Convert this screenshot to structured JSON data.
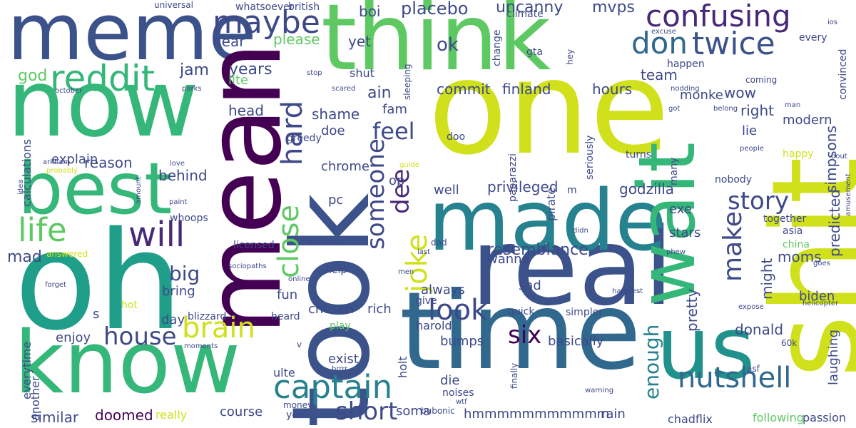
{
  "wordcloud": {
    "words": [
      {
        "text": "think",
        "color": "#5ec962"
      },
      {
        "text": "one",
        "color": "#d0e11c"
      },
      {
        "text": "meme",
        "color": "#3b528b"
      },
      {
        "text": "now",
        "color": "#35b779"
      },
      {
        "text": "oh",
        "color": "#1f9e89"
      },
      {
        "text": "know",
        "color": "#35b779"
      },
      {
        "text": "took",
        "color": "#3b528b"
      },
      {
        "text": "mean",
        "color": "#440154"
      },
      {
        "text": "real",
        "color": "#3b528b"
      },
      {
        "text": "time",
        "color": "#31688e"
      },
      {
        "text": "made",
        "color": "#26828e"
      },
      {
        "text": "wait",
        "color": "#35b779"
      },
      {
        "text": "shit",
        "color": "#d0e11c"
      },
      {
        "text": "us",
        "color": "#21918c"
      },
      {
        "text": "best",
        "color": "#35b779"
      },
      {
        "text": "confusing",
        "color": "#482878"
      },
      {
        "text": "maybe",
        "color": "#3e4989"
      },
      {
        "text": "reddit",
        "color": "#35b779"
      },
      {
        "text": "don",
        "color": "#31688e"
      },
      {
        "text": "twice",
        "color": "#3b528b"
      },
      {
        "text": "life",
        "color": "#5ec962"
      },
      {
        "text": "will",
        "color": "#482878"
      },
      {
        "text": "brain",
        "color": "#d0e11c"
      },
      {
        "text": "captain",
        "color": "#26828e"
      },
      {
        "text": "nutshell",
        "color": "#31688e"
      },
      {
        "text": "look",
        "color": "#3e4989"
      },
      {
        "text": "make",
        "color": "#3e4989"
      },
      {
        "text": "hard",
        "color": "#3e4989"
      },
      {
        "text": "close",
        "color": "#5ec962"
      },
      {
        "text": "someone",
        "color": "#3e4989"
      },
      {
        "text": "joke",
        "color": "#d0e11c"
      },
      {
        "text": "dee",
        "color": "#482878"
      },
      {
        "text": "story",
        "color": "#3e4989"
      },
      {
        "text": "house",
        "color": "#3e4989"
      },
      {
        "text": "short",
        "color": "#3e4989"
      },
      {
        "text": "six",
        "color": "#440154"
      },
      {
        "text": "ok",
        "color": "#3e4989"
      },
      {
        "text": "feel",
        "color": "#3e4989"
      },
      {
        "text": "enough",
        "color": "#26828e"
      },
      {
        "text": "mad",
        "color": "#3e4989"
      },
      {
        "text": "big",
        "color": "#3e4989"
      },
      {
        "text": "jam",
        "color": "#3e4989"
      },
      {
        "text": "god",
        "color": "#5ec962"
      },
      {
        "text": "years",
        "color": "#3e4989"
      },
      {
        "text": "head",
        "color": "#3e4989"
      },
      {
        "text": "placebo",
        "color": "#3e4989"
      },
      {
        "text": "uncanny",
        "color": "#3e4989"
      },
      {
        "text": "mvps",
        "color": "#3e4989"
      },
      {
        "text": "boi",
        "color": "#3e4989"
      },
      {
        "text": "please",
        "color": "#5ec962"
      },
      {
        "text": "yet",
        "color": "#3e4989"
      },
      {
        "text": "hear",
        "color": "#3e4989"
      },
      {
        "text": "commit",
        "color": "#3e4989"
      },
      {
        "text": "finland",
        "color": "#3e4989"
      },
      {
        "text": "hours",
        "color": "#3e4989"
      },
      {
        "text": "ain",
        "color": "#3e4989"
      },
      {
        "text": "shame",
        "color": "#3e4989"
      },
      {
        "text": "doe",
        "color": "#3e4989"
      },
      {
        "text": "fam",
        "color": "#3e4989"
      },
      {
        "text": "team",
        "color": "#3e4989"
      },
      {
        "text": "monke",
        "color": "#3e4989"
      },
      {
        "text": "wow",
        "color": "#3e4989"
      },
      {
        "text": "right",
        "color": "#3e4989"
      },
      {
        "text": "lie",
        "color": "#3e4989"
      },
      {
        "text": "modern",
        "color": "#3e4989"
      },
      {
        "text": "simpsons",
        "color": "#3e4989"
      },
      {
        "text": "predicted",
        "color": "#3e4989"
      },
      {
        "text": "laughing",
        "color": "#3e4989"
      },
      {
        "text": "explain",
        "color": "#3e4989"
      },
      {
        "text": "reason",
        "color": "#3e4989"
      },
      {
        "text": "behind",
        "color": "#3e4989"
      },
      {
        "text": "chrome",
        "color": "#3e4989"
      },
      {
        "text": "op",
        "color": "#3e4989"
      },
      {
        "text": "pc",
        "color": "#3e4989"
      },
      {
        "text": "well",
        "color": "#3e4989"
      },
      {
        "text": "privileged",
        "color": "#3e4989"
      },
      {
        "text": "godzilla",
        "color": "#3e4989"
      },
      {
        "text": "exe",
        "color": "#3e4989"
      },
      {
        "text": "stars",
        "color": "#3e4989"
      },
      {
        "text": "moms",
        "color": "#3e4989"
      },
      {
        "text": "might",
        "color": "#3e4989"
      },
      {
        "text": "pretty",
        "color": "#3e4989"
      },
      {
        "text": "biden",
        "color": "#3e4989"
      },
      {
        "text": "donald",
        "color": "#3e4989"
      },
      {
        "text": "resemblance",
        "color": "#3e4989"
      },
      {
        "text": "wanna",
        "color": "#3e4989"
      },
      {
        "text": "always",
        "color": "#3e4989"
      },
      {
        "text": "sad",
        "color": "#3e4989"
      },
      {
        "text": "fun",
        "color": "#3e4989"
      },
      {
        "text": "chosen",
        "color": "#3e4989"
      },
      {
        "text": "rich",
        "color": "#3e4989"
      },
      {
        "text": "bring",
        "color": "#3e4989"
      },
      {
        "text": "day",
        "color": "#3e4989"
      },
      {
        "text": "enjoy",
        "color": "#3e4989"
      },
      {
        "text": "similar",
        "color": "#3e4989"
      },
      {
        "text": "doomed",
        "color": "#440154"
      },
      {
        "text": "really",
        "color": "#d0e11c"
      },
      {
        "text": "course",
        "color": "#3e4989"
      },
      {
        "text": "exist",
        "color": "#3e4989"
      },
      {
        "text": "bumps",
        "color": "#3e4989"
      },
      {
        "text": "basically",
        "color": "#3e4989"
      },
      {
        "text": "die",
        "color": "#3e4989"
      },
      {
        "text": "noises",
        "color": "#3e4989"
      },
      {
        "text": "soma",
        "color": "#3e4989"
      },
      {
        "text": "hmmmmmmmmmmm",
        "color": "#3e4989"
      },
      {
        "text": "rain",
        "color": "#3e4989"
      },
      {
        "text": "chadflix",
        "color": "#3e4989"
      },
      {
        "text": "following",
        "color": "#5ec962"
      },
      {
        "text": "passion",
        "color": "#3e4989"
      },
      {
        "text": "everytime",
        "color": "#3e4989"
      },
      {
        "text": "another",
        "color": "#3e4989"
      },
      {
        "text": "ulte",
        "color": "#3e4989"
      },
      {
        "text": "holt",
        "color": "#3e4989"
      },
      {
        "text": "calculations",
        "color": "#3e4989"
      },
      {
        "text": "whoops",
        "color": "#3e4989"
      },
      {
        "text": "licensed",
        "color": "#3e4989"
      },
      {
        "text": "answered",
        "color": "#d0e11c"
      },
      {
        "text": "blizzard",
        "color": "#3e4989"
      },
      {
        "text": "heard",
        "color": "#3e4989"
      },
      {
        "text": "play",
        "color": "#5ec962"
      },
      {
        "text": "help",
        "color": "#3e4989"
      },
      {
        "text": "give",
        "color": "#3e4989"
      },
      {
        "text": "harold",
        "color": "#3e4989"
      },
      {
        "text": "quick",
        "color": "#3e4989"
      },
      {
        "text": "simpler",
        "color": "#3e4989"
      },
      {
        "text": "hot",
        "color": "#d0e11c"
      },
      {
        "text": "s",
        "color": "#3e4989"
      },
      {
        "text": "yes",
        "color": "#3e4989"
      },
      {
        "text": "money",
        "color": "#3e4989"
      },
      {
        "text": "bubonic",
        "color": "#3e4989"
      },
      {
        "text": "wtf",
        "color": "#3e4989"
      },
      {
        "text": "finally",
        "color": "#3e4989"
      },
      {
        "text": "asf",
        "color": "#3e4989"
      },
      {
        "text": "60k",
        "color": "#3e4989"
      },
      {
        "text": "warning",
        "color": "#3e4989"
      },
      {
        "text": "moments",
        "color": "#3e4989"
      },
      {
        "text": "forget",
        "color": "#3e4989"
      },
      {
        "text": "brrrr",
        "color": "#3e4989"
      },
      {
        "text": "v",
        "color": "#3e4989"
      },
      {
        "text": "online",
        "color": "#3e4989"
      },
      {
        "text": "sociopaths",
        "color": "#3e4989"
      },
      {
        "text": "men",
        "color": "#3e4989"
      },
      {
        "text": "goes",
        "color": "#3e4989"
      },
      {
        "text": "expose",
        "color": "#3e4989"
      },
      {
        "text": "helicopter",
        "color": "#3e4989"
      },
      {
        "text": "happiest",
        "color": "#3e4989"
      },
      {
        "text": "phew",
        "color": "#3e4989"
      },
      {
        "text": "china",
        "color": "#5ec962"
      },
      {
        "text": "asia",
        "color": "#3e4989"
      },
      {
        "text": "together",
        "color": "#3e4989"
      },
      {
        "text": "happy",
        "color": "#d0e11c"
      },
      {
        "text": "bout",
        "color": "#3e4989"
      },
      {
        "text": "amusement",
        "color": "#3e4989"
      },
      {
        "text": "people",
        "color": "#3e4989"
      },
      {
        "text": "nobody",
        "color": "#3e4989"
      },
      {
        "text": "turns",
        "color": "#3e4989"
      },
      {
        "text": "many",
        "color": "#3e4989"
      },
      {
        "text": "pirate",
        "color": "#3e4989"
      },
      {
        "text": "seriously",
        "color": "#3e4989"
      },
      {
        "text": "paparazzi",
        "color": "#3e4989"
      },
      {
        "text": "doo",
        "color": "#3e4989"
      },
      {
        "text": "silly",
        "color": "#d0e11c"
      },
      {
        "text": "m",
        "color": "#3e4989"
      },
      {
        "text": "didn",
        "color": "#3e4989"
      },
      {
        "text": "last",
        "color": "#3e4989"
      },
      {
        "text": "dad",
        "color": "#3e4989"
      },
      {
        "text": "decade",
        "color": "#3e4989"
      },
      {
        "text": "guide",
        "color": "#d0e11c"
      },
      {
        "text": "arkham",
        "color": "#3e4989"
      },
      {
        "text": "probably",
        "color": "#d0e11c"
      },
      {
        "text": "love",
        "color": "#3e4989"
      },
      {
        "text": "idea",
        "color": "#3e4989"
      },
      {
        "text": "amount",
        "color": "#3e4989"
      },
      {
        "text": "paint",
        "color": "#3e4989"
      },
      {
        "text": "greedy",
        "color": "#3e4989"
      },
      {
        "text": "scared",
        "color": "#3e4989"
      },
      {
        "text": "sleeping",
        "color": "#3e4989"
      },
      {
        "text": "stop",
        "color": "#3e4989"
      },
      {
        "text": "parks",
        "color": "#3e4989"
      },
      {
        "text": "october",
        "color": "#3e4989"
      },
      {
        "text": "lite",
        "color": "#5ec962"
      },
      {
        "text": "shut",
        "color": "#3e4989"
      },
      {
        "text": "change",
        "color": "#3e4989"
      },
      {
        "text": "climate",
        "color": "#3e4989"
      },
      {
        "text": "gta",
        "color": "#3e4989"
      },
      {
        "text": "hey",
        "color": "#3e4989"
      },
      {
        "text": "happen",
        "color": "#3e4989"
      },
      {
        "text": "coming",
        "color": "#3e4989"
      },
      {
        "text": "nodding",
        "color": "#3e4989"
      },
      {
        "text": "got",
        "color": "#3e4989"
      },
      {
        "text": "belong",
        "color": "#3e4989"
      },
      {
        "text": "man",
        "color": "#3e4989"
      },
      {
        "text": "convinced",
        "color": "#3e4989"
      },
      {
        "text": "every",
        "color": "#3e4989"
      },
      {
        "text": "excuse",
        "color": "#3e4989"
      },
      {
        "text": "ios",
        "color": "#3e4989"
      },
      {
        "text": "whatsoever",
        "color": "#3e4989"
      },
      {
        "text": "british",
        "color": "#3e4989"
      },
      {
        "text": "universal",
        "color": "#3e4989"
      }
    ]
  }
}
